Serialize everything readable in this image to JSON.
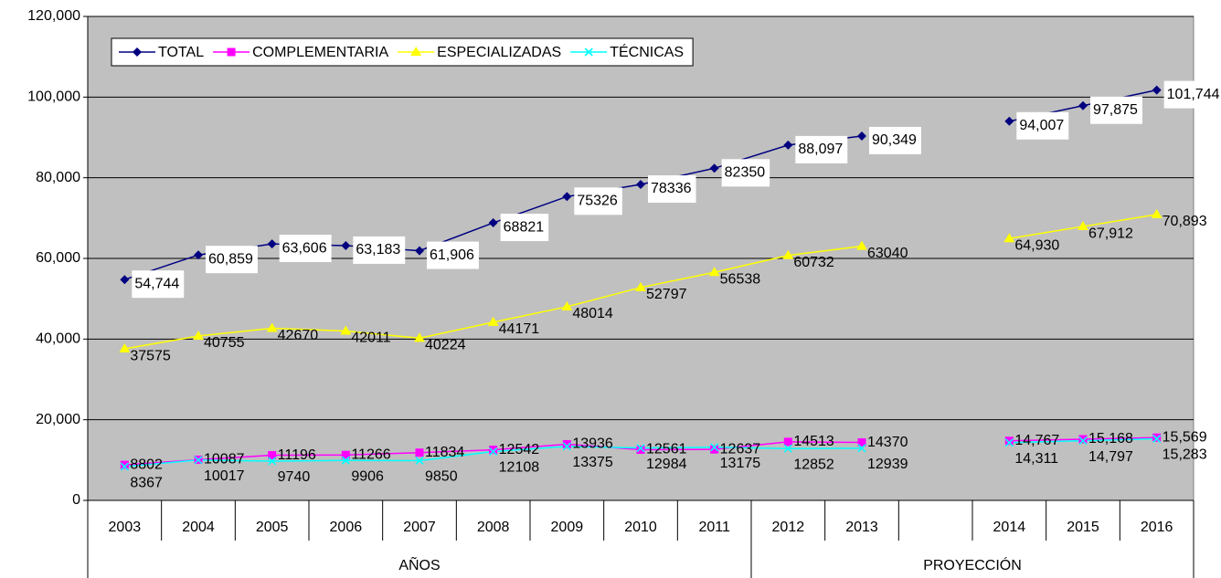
{
  "chart_data": {
    "type": "line",
    "categories": [
      "2003",
      "2004",
      "2005",
      "2006",
      "2007",
      "2008",
      "2009",
      "2010",
      "2011",
      "2012",
      "2013",
      null,
      "2014",
      "2015",
      "2016"
    ],
    "group_labels": [
      "AÑOS",
      "PROYECCIÓN"
    ],
    "ylim": [
      0,
      120000
    ],
    "yticks": [
      0,
      {
        "value": 20000,
        "label": "20,000"
      },
      {
        "value": 40000,
        "label": "40,000"
      },
      {
        "value": 60000,
        "label": "60,000"
      },
      {
        "value": 80000,
        "label": "80,000"
      },
      {
        "value": 100000,
        "label": "100,000"
      },
      {
        "value": 120000,
        "label": "120,000"
      }
    ],
    "grid": true,
    "legend": "top-left",
    "series": [
      {
        "name": "TOTAL",
        "color": "#000080",
        "marker": "diamond",
        "values": [
          54744,
          60859,
          63606,
          63183,
          61906,
          68821,
          75326,
          78336,
          82350,
          88097,
          90349,
          null,
          94007,
          97875,
          101744
        ],
        "value_labels": [
          "54,744",
          "60,859",
          "63,606",
          "63,183",
          "61,906",
          "68821",
          "75326",
          "78336",
          "82350",
          "88,097",
          "90,349",
          null,
          "94,007",
          "97,875",
          "101,744"
        ]
      },
      {
        "name": "COMPLEMENTARIA",
        "color": "#ff00ff",
        "marker": "square",
        "values": [
          8802,
          10087,
          11196,
          11266,
          11834,
          12542,
          13936,
          12561,
          12637,
          14513,
          14370,
          null,
          14767,
          15168,
          15569
        ],
        "value_labels": [
          "8802",
          "10087",
          "11196",
          "11266",
          "11834",
          "12542",
          "13936",
          "12561",
          "12637",
          "14513",
          "14370",
          null,
          "14,767",
          "15,168",
          "15,569"
        ]
      },
      {
        "name": "ESPECIALIZADAS",
        "color": "#ffff00",
        "marker": "triangle",
        "values": [
          37575,
          40755,
          42670,
          42011,
          40224,
          44171,
          48014,
          52797,
          56538,
          60732,
          63040,
          null,
          64930,
          67912,
          70893
        ],
        "value_labels": [
          "37575",
          "40755",
          "42670",
          "42011",
          "40224",
          "44171",
          "48014",
          "52797",
          "56538",
          "60732",
          "63040",
          null,
          "64,930",
          "67,912",
          "70,893"
        ]
      },
      {
        "name": "TÉCNICAS",
        "color": "#00ffff",
        "marker": "x",
        "values": [
          8367,
          10017,
          9740,
          9906,
          9850,
          12108,
          13375,
          12984,
          13175,
          12852,
          12939,
          null,
          14311,
          14797,
          15283
        ],
        "value_labels": [
          "8367",
          "10017",
          "9740",
          "9906",
          "9850",
          "12108",
          "13375",
          "12984",
          "13175",
          "12852",
          "12939",
          null,
          "14,311",
          "14,797",
          "15,283"
        ]
      }
    ]
  }
}
